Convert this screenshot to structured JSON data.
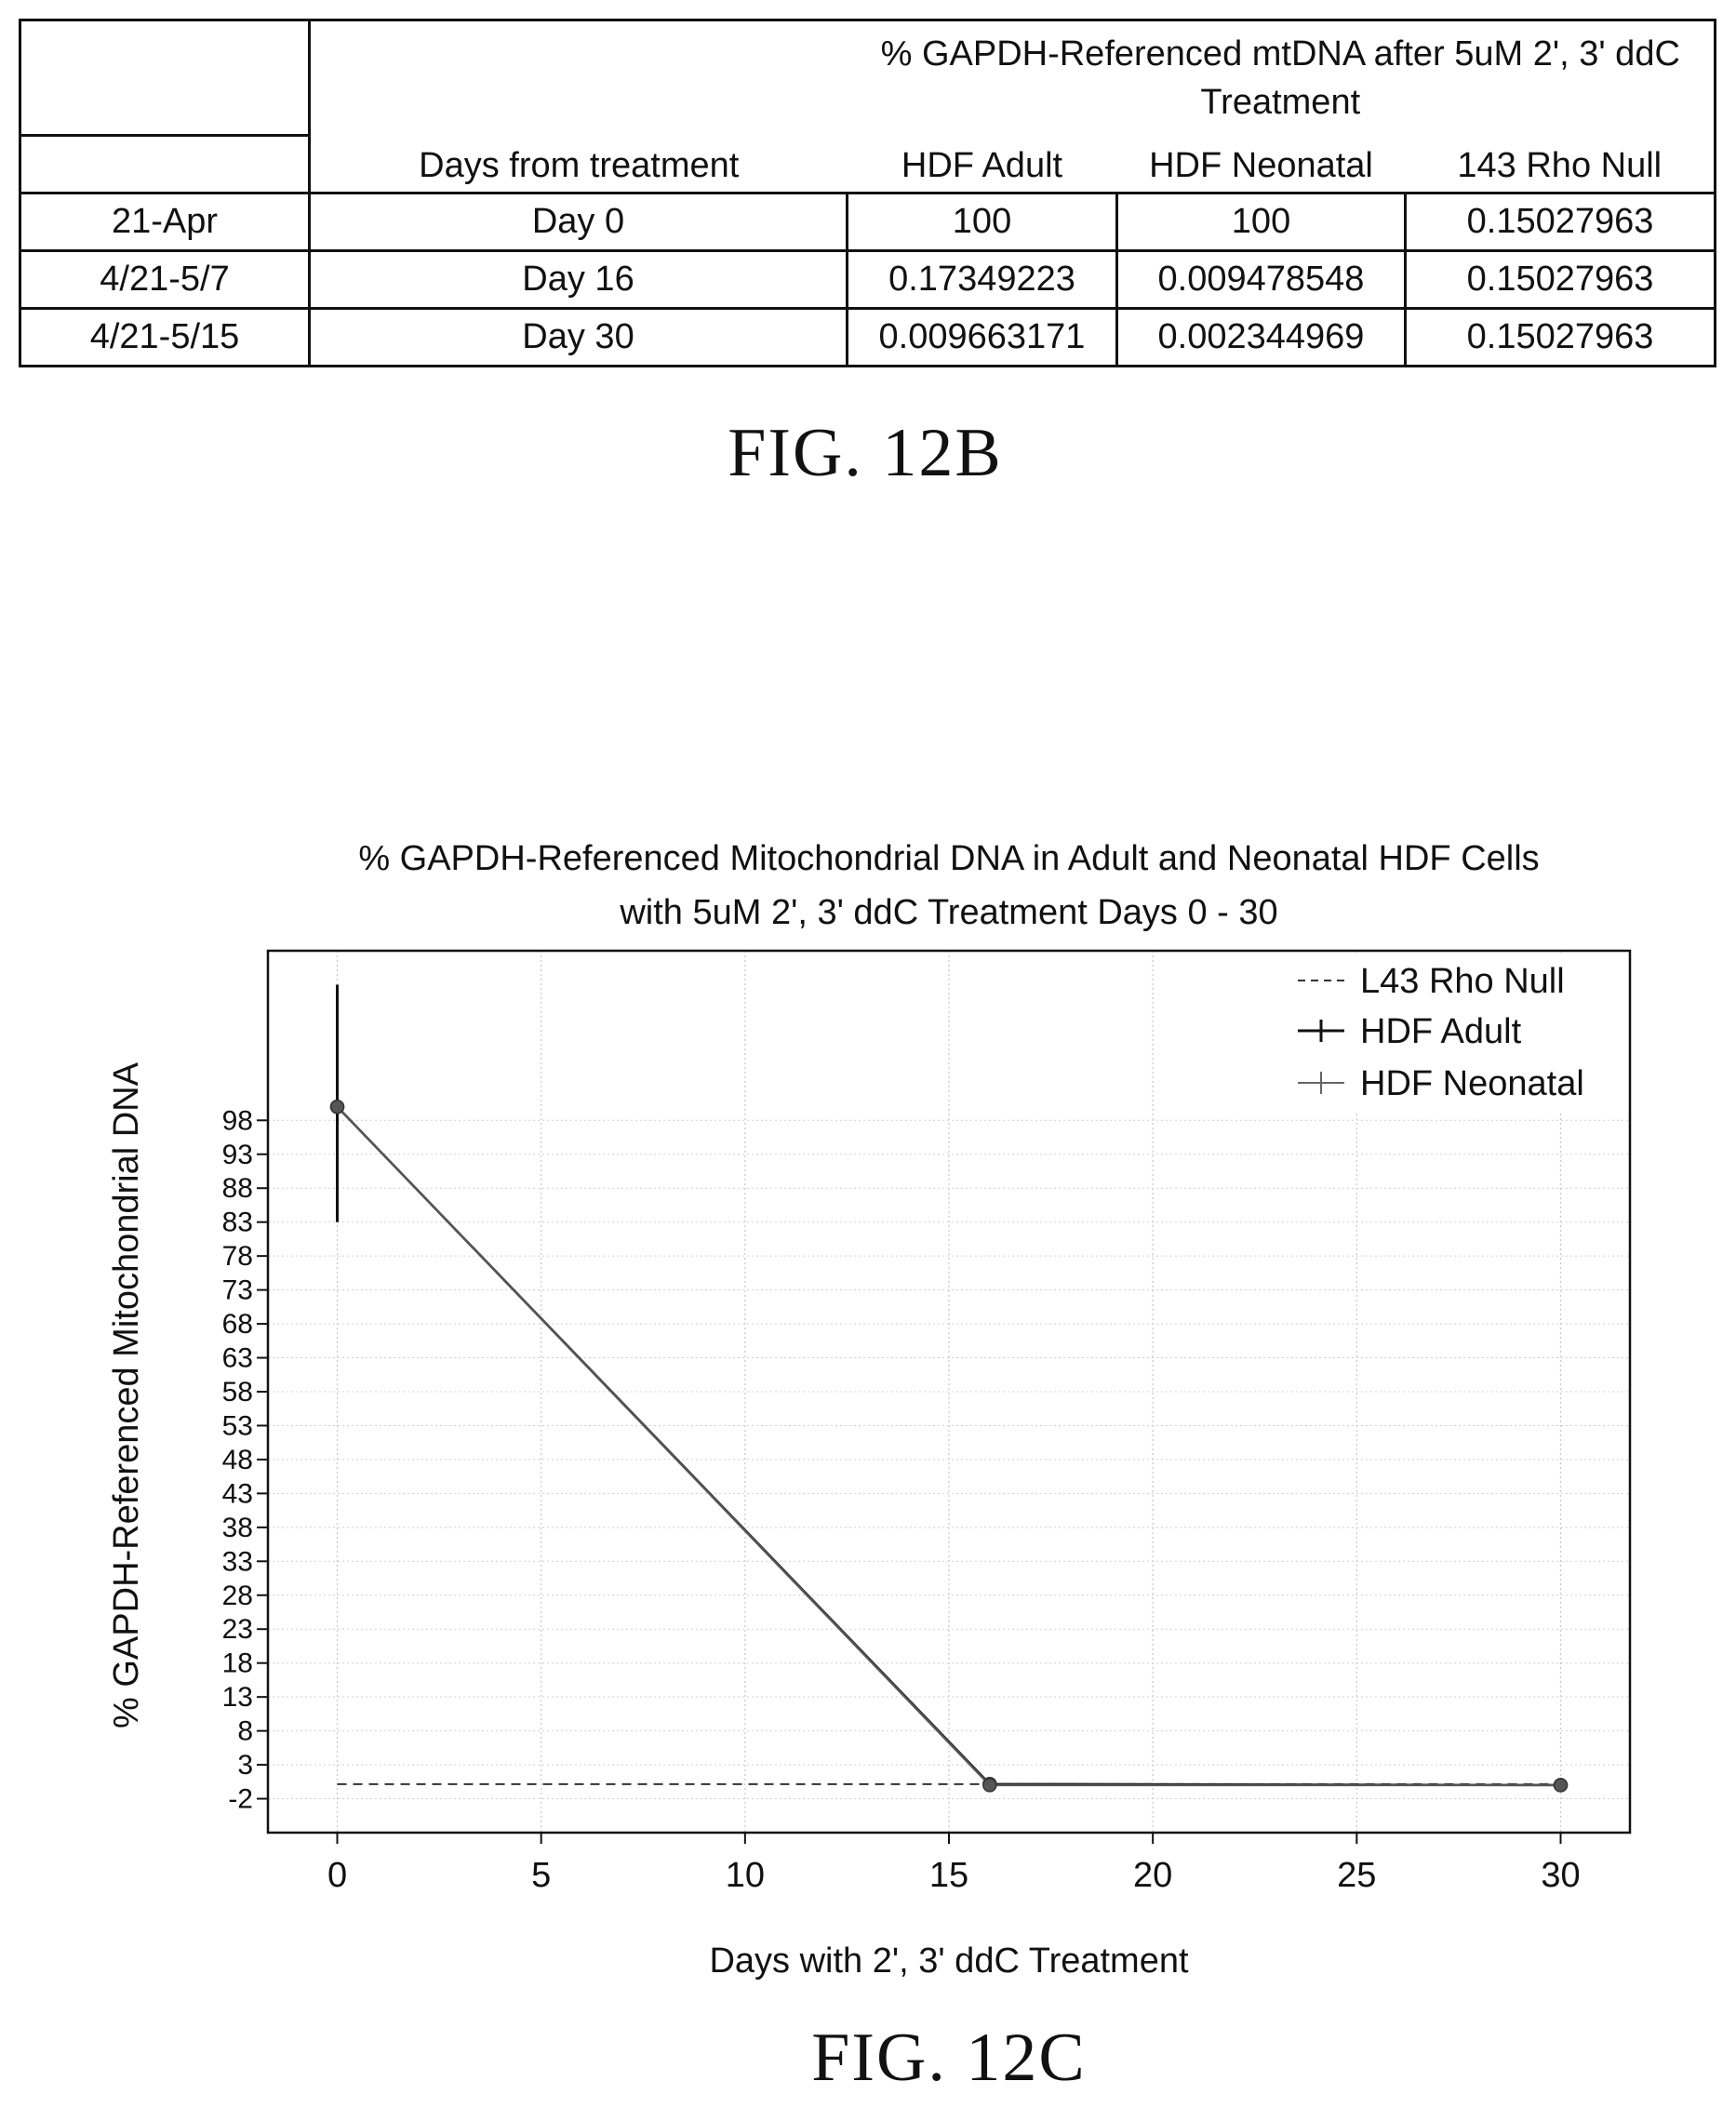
{
  "fig12b": {
    "caption": "FIG. 12B",
    "table": {
      "main_header": "% GAPDH-Referenced mtDNA after 5uM 2', 3' ddC Treatment",
      "days_header": "Days from treatment",
      "col_headers": [
        "HDF Adult",
        "HDF Neonatal",
        "143 Rho Null"
      ],
      "rows": [
        {
          "date": "21-Apr",
          "day": "Day 0",
          "values": [
            "100",
            "100",
            "0.15027963"
          ]
        },
        {
          "date": "4/21-5/7",
          "day": "Day 16",
          "values": [
            "0.17349223",
            "0.009478548",
            "0.15027963"
          ]
        },
        {
          "date": "4/21-5/15",
          "day": "Day 30",
          "values": [
            "0.009663171",
            "0.002344969",
            "0.15027963"
          ]
        }
      ]
    }
  },
  "fig12c": {
    "caption": "FIG. 12C",
    "chart_data": {
      "type": "line",
      "title": "% GAPDH-Referenced Mitochondrial DNA in Adult and Neonatal HDF Cells",
      "subtitle": "with 5uM 2', 3' ddC Treatment Days 0 - 30",
      "xlabel": "Days with 2', 3' ddC Treatment",
      "ylabel": "% GAPDH-Referenced Mitochondrial DNA",
      "xlim": [
        -1.7,
        31.7
      ],
      "ylim": [
        -7,
        123
      ],
      "x_ticks": [
        0,
        5,
        10,
        15,
        20,
        25,
        30
      ],
      "y_ticks": [
        -2,
        3,
        8,
        13,
        18,
        23,
        28,
        33,
        38,
        43,
        48,
        53,
        58,
        63,
        68,
        73,
        78,
        83,
        88,
        93,
        98
      ],
      "grid": true,
      "legend_position": "top-right",
      "series": [
        {
          "name": "L43 Rho Null",
          "style": "dashed",
          "x": [
            0,
            30
          ],
          "y": [
            0.15027963,
            0.15027963
          ]
        },
        {
          "name": "HDF Adult",
          "style": "solid",
          "x": [
            0,
            16,
            30
          ],
          "y": [
            100,
            0.17349223,
            0.009663171
          ]
        },
        {
          "name": "HDF Neonatal",
          "style": "solid",
          "x": [
            0,
            16,
            30
          ],
          "y": [
            100,
            0.009478548,
            0.002344969
          ]
        }
      ],
      "error_bar": {
        "x": 0,
        "low": 83,
        "high": 118
      }
    }
  }
}
